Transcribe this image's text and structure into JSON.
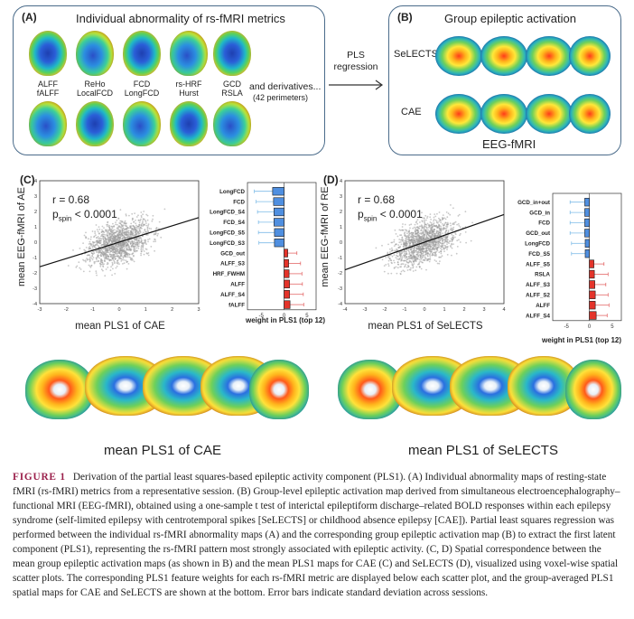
{
  "panelA": {
    "label": "(A)",
    "title": "Individual abnormality of rs-fMRI metrics",
    "metrics": [
      {
        "top": "ALFF",
        "bottom": "fALFF"
      },
      {
        "top": "ReHo",
        "bottom": "LocalFCD"
      },
      {
        "top": "FCD",
        "bottom": "LongFCD"
      },
      {
        "top": "rs-HRF",
        "bottom": "Hurst"
      },
      {
        "top": "GCD",
        "bottom": "RSLA"
      }
    ],
    "derivatives": "and derivatives...",
    "perimeters": "(42 perimeters)"
  },
  "arrow": {
    "line1": "PLS",
    "line2": "regression"
  },
  "panelB": {
    "label": "(B)",
    "title": "Group epileptic activation",
    "row1": "SeLECTS",
    "row2": "CAE",
    "footer": "EEG-fMRI"
  },
  "panelC": {
    "label": "(C)",
    "r_text": "r = 0.68",
    "p_main": "p",
    "p_sub": "spin",
    "p_rest": " < 0.0001",
    "ylabel": "mean EEG-fMRI of AE",
    "xlabel": "mean PLS1 of CAE",
    "bar_xlabel": "weight in PLS1 (top 12)",
    "map_title": "mean PLS1 of CAE"
  },
  "panelD": {
    "label": "(D)",
    "r_text": "r = 0.68",
    "p_main": "p",
    "p_sub": "spin",
    "p_rest": " < 0.0001",
    "ylabel": "mean EEG-fMRI of RE",
    "xlabel": "mean PLS1 of SeLECTS",
    "bar_xlabel": "weight in PLS1 (top 12)",
    "map_title": "mean PLS1 of SeLECTS"
  },
  "chart_data": [
    {
      "type": "scatter",
      "panel": "C",
      "title": "",
      "xlabel": "mean PLS1 of CAE",
      "ylabel": "mean EEG-fMRI of AE",
      "xlim": [
        -3,
        3
      ],
      "ylim": [
        -4,
        4
      ],
      "xticks": [
        -3,
        -2,
        -1,
        0,
        1,
        2,
        3
      ],
      "yticks": [
        -4,
        -3,
        -2,
        -1,
        0,
        1,
        2,
        3,
        4
      ],
      "fit_line": {
        "x": [
          -3,
          3
        ],
        "y": [
          -1.6,
          1.6
        ]
      },
      "annotation": "r = 0.68, p_spin < 0.0001"
    },
    {
      "type": "bar",
      "panel": "C",
      "orientation": "horizontal",
      "xlabel": "weight in PLS1 (top 12)",
      "xlim": [
        -8,
        7
      ],
      "xticks": [
        -5,
        0,
        5
      ],
      "categories": [
        "LongFCD",
        "FCD",
        "LongFCD_S4",
        "FCD_S4",
        "LongFCD_S5",
        "LongFCD_S3",
        "GCD_out",
        "ALFF_S3",
        "HRF_FWHM",
        "ALFF",
        "ALFF_S4",
        "fALFF"
      ],
      "values": [
        -2.5,
        -2.3,
        -2.2,
        -2.2,
        -2.1,
        -2.1,
        0.8,
        1.0,
        1.1,
        1.2,
        1.2,
        1.3
      ],
      "errors": [
        4.0,
        3.8,
        3.6,
        3.4,
        3.5,
        3.4,
        2.0,
        2.6,
        2.8,
        2.8,
        3.0,
        3.0
      ]
    },
    {
      "type": "scatter",
      "panel": "D",
      "title": "",
      "xlabel": "mean PLS1 of SeLECTS",
      "ylabel": "mean EEG-fMRI of RE",
      "xlim": [
        -4,
        4
      ],
      "ylim": [
        -4,
        4
      ],
      "xticks": [
        -4,
        -3,
        -2,
        -1,
        0,
        1,
        2,
        3,
        4
      ],
      "yticks": [
        -4,
        -3,
        -2,
        -1,
        0,
        1,
        2,
        3,
        4
      ],
      "fit_line": {
        "x": [
          -4,
          4
        ],
        "y": [
          -1.8,
          1.8
        ]
      },
      "annotation": "r = 0.68, p_spin < 0.0001"
    },
    {
      "type": "bar",
      "panel": "D",
      "orientation": "horizontal",
      "xlabel": "weight in PLS1 (top 12)",
      "xlim": [
        -8,
        7
      ],
      "xticks": [
        -5,
        0,
        5
      ],
      "categories": [
        "GCD_in+out",
        "GCD_in",
        "FCD",
        "GCD_out",
        "LongFCD",
        "FCD_S5",
        "ALFF_S5",
        "RSLA",
        "ALFF_S3",
        "ALFF_S2",
        "ALFF",
        "ALFF_S4"
      ],
      "values": [
        -1.0,
        -1.0,
        -1.0,
        -1.0,
        -0.9,
        -0.9,
        1.0,
        1.1,
        1.2,
        1.3,
        1.3,
        1.5
      ],
      "errors": [
        3.2,
        3.2,
        3.2,
        3.2,
        3.0,
        3.0,
        2.2,
        3.0,
        2.4,
        2.8,
        3.0,
        2.4
      ]
    }
  ],
  "caption": {
    "fig_label": "FIGURE 1",
    "text": "Derivation of the partial least squares-based epileptic activity component (PLS1). (A) Individual abnormality maps of resting-state fMRI (rs-fMRI) metrics from a representative session. (B) Group-level epileptic activation map derived from simultaneous electroencephalography–functional MRI (EEG-fMRI), obtained using a one-sample t test of interictal epileptiform discharge–related BOLD responses within each epilepsy syndrome (self-limited epilepsy with centrotemporal spikes [SeLECTS] or childhood absence epilepsy [CAE]). Partial least squares regression was performed between the individual rs-fMRI abnormality maps (A) and the corresponding group epileptic activation map (B) to extract the first latent component (PLS1), representing the rs-fMRI pattern most strongly associated with epileptic activity. (C, D) Spatial correspondence between the mean group epileptic activation maps (as shown in B) and the mean PLS1 maps for CAE (C) and SeLECTS (D), visualized using voxel-wise spatial scatter plots. The corresponding PLS1 feature weights for each rs-fMRI metric are displayed below each scatter plot, and the group-averaged PLS1 spatial maps for CAE and SeLECTS are shown at the bottom. Error bars indicate standard deviation across sessions."
  }
}
